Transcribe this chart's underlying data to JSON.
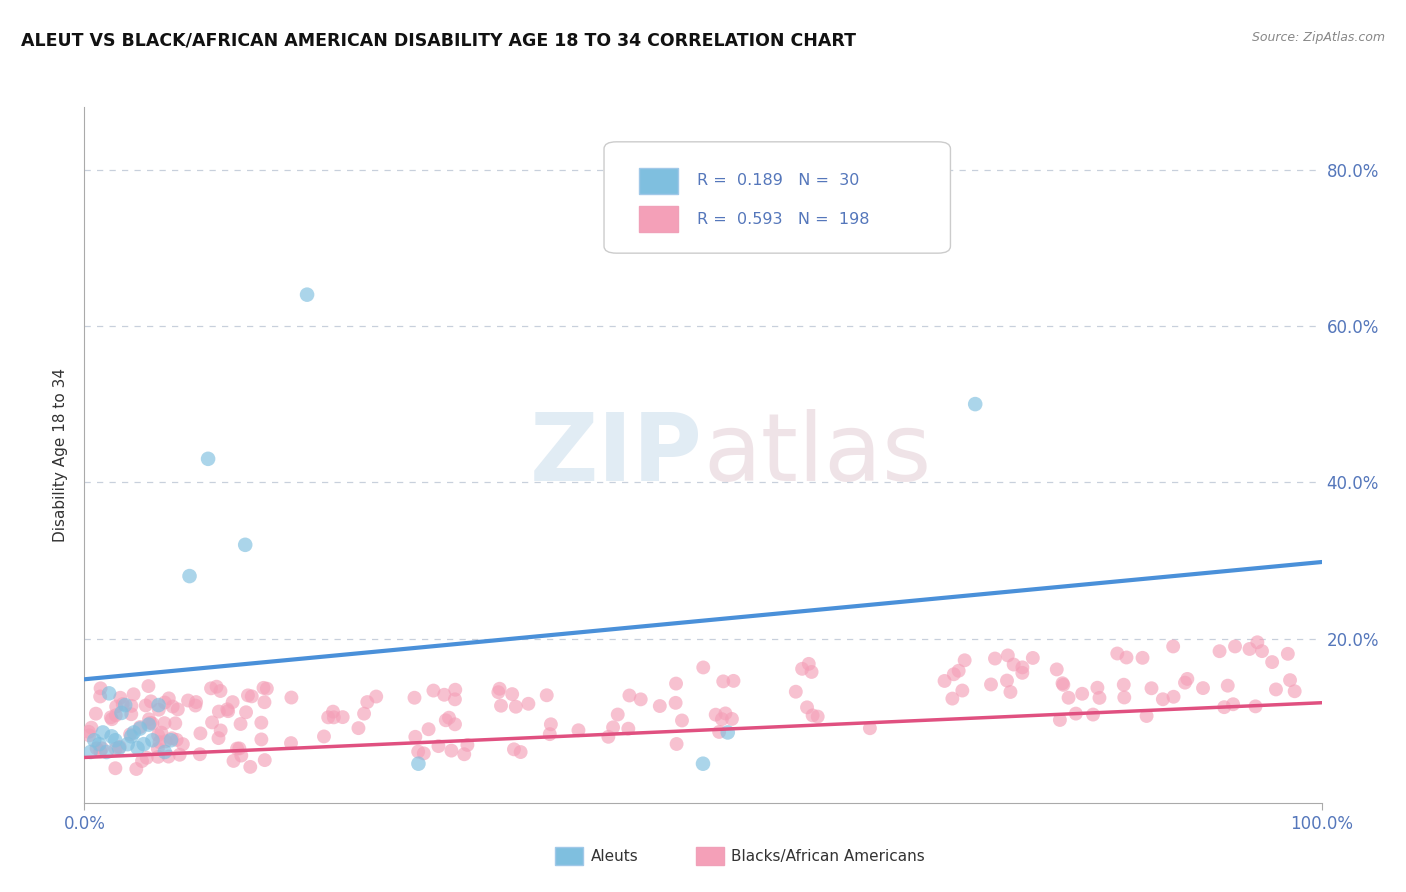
{
  "title": "ALEUT VS BLACK/AFRICAN AMERICAN DISABILITY AGE 18 TO 34 CORRELATION CHART",
  "source_text": "Source: ZipAtlas.com",
  "ylabel": "Disability Age 18 to 34",
  "xlim": [
    0,
    1
  ],
  "ylim": [
    -0.01,
    0.88
  ],
  "aleut_color": "#7fbfdf",
  "black_color": "#f4a0b8",
  "trendline_aleut_color": "#4a90d9",
  "trendline_black_color": "#e05080",
  "watermark_zip": "ZIP",
  "watermark_atlas": "atlas",
  "bottom_legend_aleuts": "Aleuts",
  "bottom_legend_blacks": "Blacks/African Americans",
  "aleut_trendline": [
    0.148,
    0.298
  ],
  "black_trendline": [
    0.048,
    0.118
  ],
  "grid_color": "#c8d0dc",
  "tick_color": "#5577bb",
  "label_color": "#333333"
}
